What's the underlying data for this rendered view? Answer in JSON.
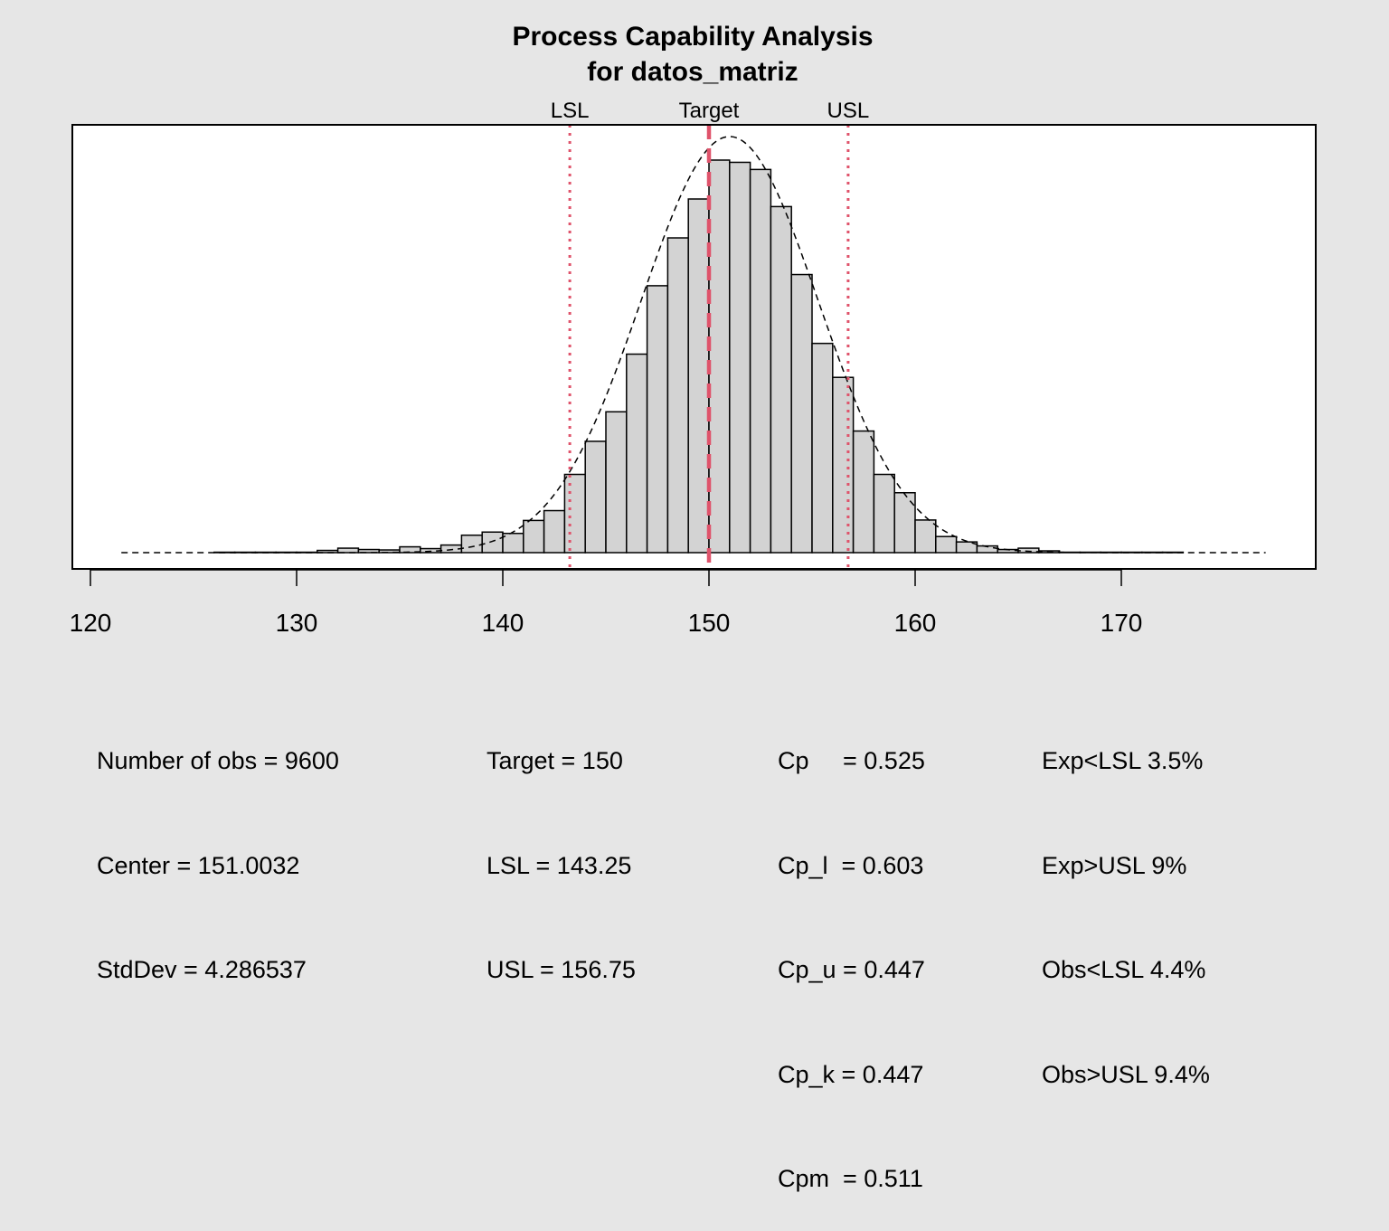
{
  "chart_data": {
    "type": "bar",
    "title": "Process Capability Analysis",
    "subtitle": "for datos_matriz",
    "xlim": [
      120,
      179
    ],
    "ylim": [
      0,
      0.0993
    ],
    "x_ticks": [
      120,
      130,
      140,
      150,
      160,
      170
    ],
    "bin_width": 1,
    "bins": [
      {
        "x0": 126,
        "x1": 127,
        "density": 0.0001
      },
      {
        "x0": 127,
        "x1": 128,
        "density": 0.0001
      },
      {
        "x0": 128,
        "x1": 129,
        "density": 0.0001
      },
      {
        "x0": 129,
        "x1": 130,
        "density": 0.0001
      },
      {
        "x0": 130,
        "x1": 131,
        "density": 0.0001
      },
      {
        "x0": 131,
        "x1": 132,
        "density": 0.0005
      },
      {
        "x0": 132,
        "x1": 133,
        "density": 0.001
      },
      {
        "x0": 133,
        "x1": 134,
        "density": 0.0007
      },
      {
        "x0": 134,
        "x1": 135,
        "density": 0.0006
      },
      {
        "x0": 135,
        "x1": 136,
        "density": 0.0013
      },
      {
        "x0": 136,
        "x1": 137,
        "density": 0.0009
      },
      {
        "x0": 137,
        "x1": 138,
        "density": 0.0017
      },
      {
        "x0": 138,
        "x1": 139,
        "density": 0.0039
      },
      {
        "x0": 139,
        "x1": 140,
        "density": 0.0046
      },
      {
        "x0": 140,
        "x1": 141,
        "density": 0.0043
      },
      {
        "x0": 141,
        "x1": 142,
        "density": 0.0072
      },
      {
        "x0": 142,
        "x1": 143,
        "density": 0.0094
      },
      {
        "x0": 143,
        "x1": 144,
        "density": 0.0175
      },
      {
        "x0": 144,
        "x1": 145,
        "density": 0.0249
      },
      {
        "x0": 145,
        "x1": 146,
        "density": 0.0315
      },
      {
        "x0": 146,
        "x1": 147,
        "density": 0.0444
      },
      {
        "x0": 147,
        "x1": 148,
        "density": 0.0597
      },
      {
        "x0": 148,
        "x1": 149,
        "density": 0.0704
      },
      {
        "x0": 149,
        "x1": 150,
        "density": 0.0791
      },
      {
        "x0": 150,
        "x1": 151,
        "density": 0.0878
      },
      {
        "x0": 151,
        "x1": 152,
        "density": 0.0873
      },
      {
        "x0": 152,
        "x1": 153,
        "density": 0.0857
      },
      {
        "x0": 153,
        "x1": 154,
        "density": 0.0774
      },
      {
        "x0": 154,
        "x1": 155,
        "density": 0.0622
      },
      {
        "x0": 155,
        "x1": 156,
        "density": 0.0468
      },
      {
        "x0": 156,
        "x1": 157,
        "density": 0.0392
      },
      {
        "x0": 157,
        "x1": 158,
        "density": 0.0272
      },
      {
        "x0": 158,
        "x1": 159,
        "density": 0.0175
      },
      {
        "x0": 159,
        "x1": 160,
        "density": 0.0134
      },
      {
        "x0": 160,
        "x1": 161,
        "density": 0.0073
      },
      {
        "x0": 161,
        "x1": 162,
        "density": 0.0036
      },
      {
        "x0": 162,
        "x1": 163,
        "density": 0.0024
      },
      {
        "x0": 163,
        "x1": 164,
        "density": 0.0015
      },
      {
        "x0": 164,
        "x1": 165,
        "density": 0.0007
      },
      {
        "x0": 165,
        "x1": 166,
        "density": 0.001
      },
      {
        "x0": 166,
        "x1": 167,
        "density": 0.0004
      },
      {
        "x0": 167,
        "x1": 168,
        "density": 0.0001
      },
      {
        "x0": 168,
        "x1": 169,
        "density": 0.0001
      },
      {
        "x0": 169,
        "x1": 170,
        "density": 0.0001
      },
      {
        "x0": 170,
        "x1": 171,
        "density": 0.0001
      },
      {
        "x0": 171,
        "x1": 172,
        "density": 0.0001
      },
      {
        "x0": 172,
        "x1": 173,
        "density": 0.0001
      }
    ],
    "normal_curve": {
      "mean": 151.0032,
      "sd": 4.286537,
      "x_range": [
        121.5,
        177
      ]
    },
    "spec_lines": [
      {
        "label": "LSL",
        "value": 143.25,
        "style": "dotted"
      },
      {
        "label": "Target",
        "value": 150,
        "style": "dashed"
      },
      {
        "label": "USL",
        "value": 156.75,
        "style": "dotted"
      }
    ],
    "line_color": "#df536b",
    "bar_fill": "#d3d3d3",
    "background": "#e6e6e6"
  },
  "stats": {
    "col1": [
      "Number of obs = 9600",
      "Center = 151.0032",
      "StdDev = 4.286537"
    ],
    "col2": [
      "Target = 150",
      "LSL = 143.25",
      "USL = 156.75"
    ],
    "col3": [
      "Cp     = 0.525",
      "Cp_l  = 0.603",
      "Cp_u = 0.447",
      "Cp_k = 0.447",
      "Cpm  = 0.511"
    ],
    "col4": [
      "Exp<LSL 3.5%",
      "Exp>USL 9%",
      "Obs<LSL 4.4%",
      "Obs>USL 9.4%"
    ]
  }
}
